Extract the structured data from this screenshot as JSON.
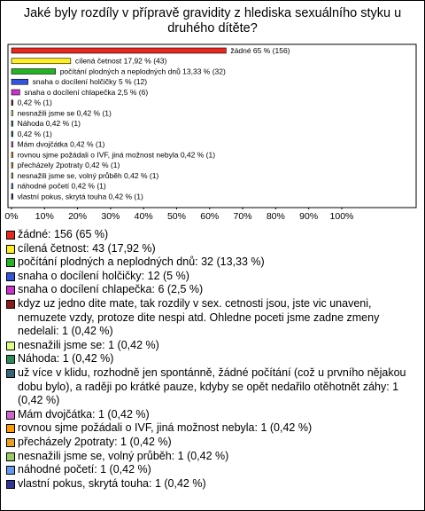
{
  "chart_data": {
    "type": "bar",
    "orientation": "horizontal",
    "title": "Jaké byly rozdíly v přípravě gravidity z hlediska sexuálního styku u druhého dítěte?",
    "values": [
      65,
      17.92,
      13.33,
      5,
      2.5,
      0.42,
      0.42,
      0.42,
      0.42,
      0.42,
      0.42,
      0.42,
      0.42,
      0.42,
      0.42
    ],
    "value_labels": [
      "žádné 65 % (156)",
      "cílená četnost 17,92 % (43)",
      "počítání plodných a neplodných dnů 13,33 % (32)",
      "snaha o docílení holčičky 5 % (12)",
      "snaha o docílení chlapečka 2,5 % (6)",
      "0,42 % (1)",
      "nesnažili jsme se 0,42 % (1)",
      "Náhoda 0,42 % (1)",
      "0,42 % (1)",
      "Mám dvojčátka 0,42 % (1)",
      "rovnou sjme požádali o IVF, jiná možnost nebyla 0,42 % (1)",
      "přecházely 2potraty 0,42 % (1)",
      "nesnažili jsme se, volný průběh 0,42 % (1)",
      "náhodné početí 0,42 % (1)",
      "vlastní pokus, skrytá touha 0,42 % (1)"
    ],
    "colors": [
      "#e8281e",
      "#ffee22",
      "#22b422",
      "#3355dd",
      "#cc33cc",
      "#8b1a1a",
      "#ddff88",
      "#2e8b57",
      "#336677",
      "#cc66cc",
      "#ff9900",
      "#e8a020",
      "#99cc66",
      "#6699ee",
      "#333399"
    ],
    "legend_labels": [
      "žádné: 156 (65 %)",
      "cílená četnost: 43 (17,92 %)",
      "počítání plodných a neplodných dnů: 32 (13,33 %)",
      "snaha o docílení holčičky: 12 (5 %)",
      "snaha o docílení chlapečka: 6 (2,5 %)",
      "kdyz uz jedno dite mate, tak rozdily v sex. cetnosti jsou, jste vic unaveni, nemuzete vzdy, protoze dite nespi atd. Ohledne poceti jsme zadne zmeny nedelali: 1 (0,42 %)",
      "nesnažili jsme se: 1 (0,42 %)",
      "Náhoda: 1 (0,42 %)",
      "už více v klidu, rozhodně jen spontánně, žádné počítání (což u prvního nějakou dobu bylo), a raději po krátké pauze, kdyby se opět nedařilo otěhotnět záhy: 1 (0,42 %)",
      "Mám dvojčátka: 1 (0,42 %)",
      "rovnou sjme požádali o IVF, jiná možnost nebyla: 1 (0,42 %)",
      "přecházely 2potraty: 1 (0,42 %)",
      "nesnažili jsme se, volný průběh: 1 (0,42 %)",
      "náhodné početí: 1 (0,42 %)",
      "vlastní pokus, skrytá touha: 1 (0,42 %)"
    ],
    "xlim": [
      0,
      122
    ],
    "xticks": [
      {
        "value": 0,
        "label": "0%"
      },
      {
        "value": 10,
        "label": "10%"
      },
      {
        "value": 20,
        "label": "20%"
      },
      {
        "value": 30,
        "label": "30%"
      },
      {
        "value": 40,
        "label": "40%"
      },
      {
        "value": 50,
        "label": "50%"
      },
      {
        "value": 60,
        "label": "60%"
      },
      {
        "value": 70,
        "label": "70%"
      },
      {
        "value": 80,
        "label": "80%"
      },
      {
        "value": 90,
        "label": "90%"
      },
      {
        "value": 100,
        "label": "100%"
      }
    ]
  }
}
